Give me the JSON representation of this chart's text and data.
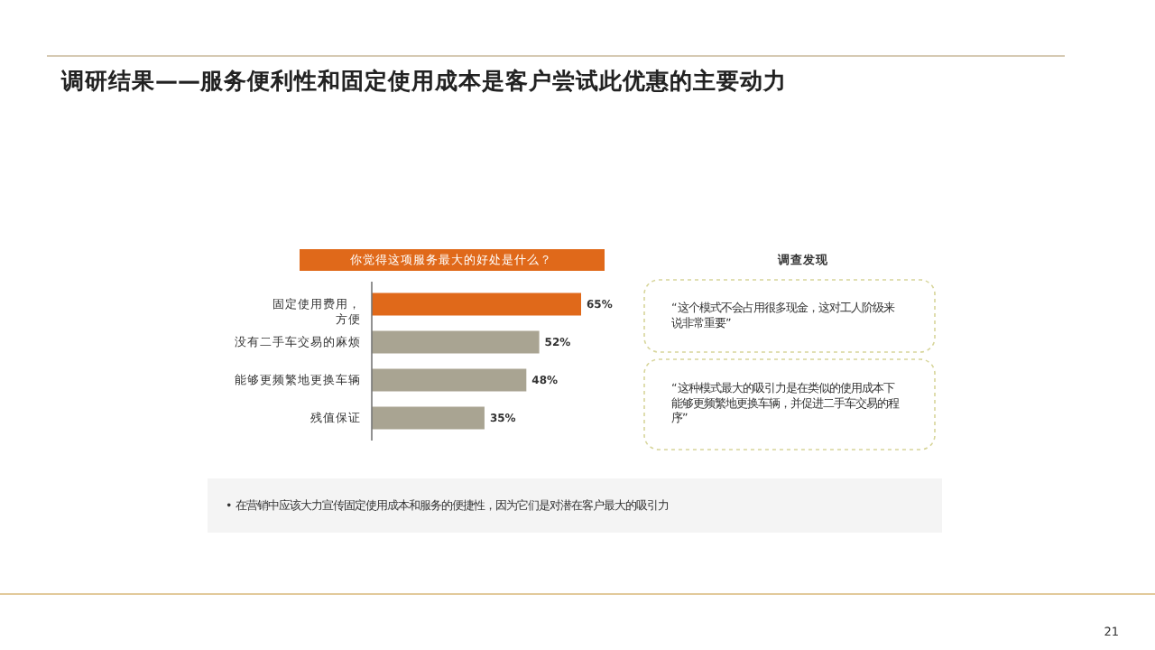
{
  "chart_data": {
    "type": "bar",
    "orientation": "horizontal",
    "title": "调研结果——服务便利性和固定使用成本是客户尝试此优惠的主要动力",
    "subtitle": "你觉得这项服务最大的好处是什么？",
    "categories": [
      "固定使用费用，方便",
      "没有二手车交易的麻烦",
      "能够更频繁地更换车辆",
      "残值保证"
    ],
    "values": [
      65,
      52,
      48,
      35
    ],
    "value_labels": [
      "65%",
      "52%",
      "48%",
      "35%"
    ],
    "colors": [
      "#e0691a",
      "#a9a492",
      "#a9a492",
      "#a9a492"
    ],
    "annotations": [
      "调查发现",
      "“这个模式不会占用很多现金，这对工人阶级来说非常重要”",
      "“这种模式最大的吸引力是在类似的使用成本下能够更频繁地更换车辆，并促进二手车交易的程序”",
      "•  在营销中应该大力宣传固定使用成本和服务的便捷性，因为它们是对潜在客户最大的吸引力",
      "21"
    ],
    "grid": false
  }
}
